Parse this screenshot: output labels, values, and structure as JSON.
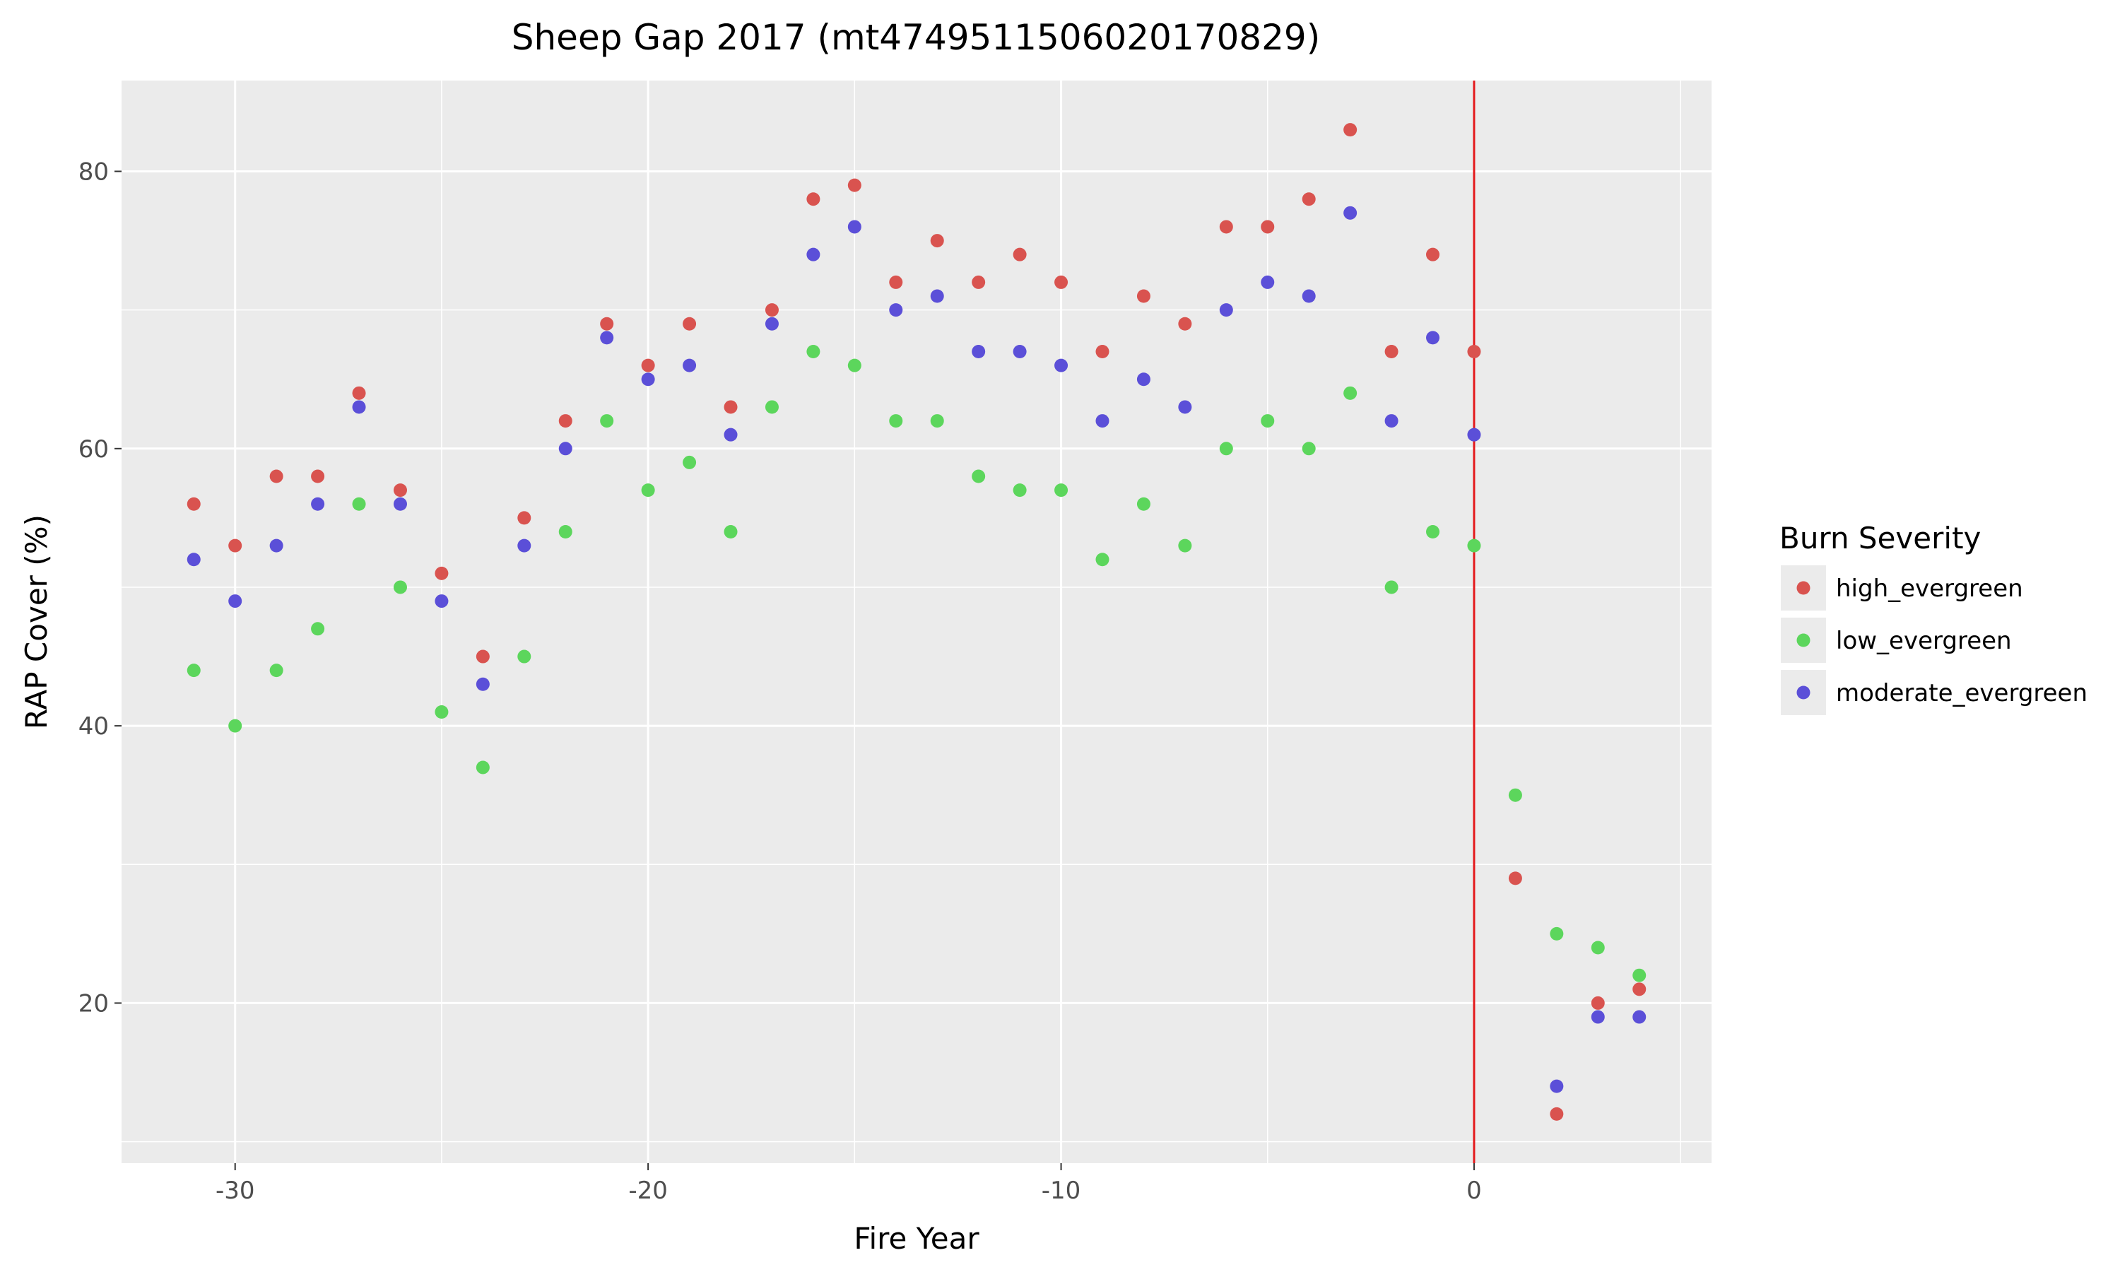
{
  "chart_data": {
    "type": "scatter",
    "title": "Sheep Gap 2017 (mt4749511506020170829)",
    "xlabel": "Fire Year",
    "ylabel": "RAP Cover (%)",
    "xlim": [
      -32.75,
      5.75
    ],
    "ylim": [
      8.45,
      86.55
    ],
    "x_ticks": [
      -30,
      -20,
      -10,
      0
    ],
    "x_tick_labels": [
      "-30",
      "-20",
      "-10",
      "0"
    ],
    "y_ticks": [
      20,
      40,
      60,
      80
    ],
    "y_tick_labels": [
      "20",
      "40",
      "60",
      "80"
    ],
    "grid": true,
    "legend": {
      "title": "Burn Severity",
      "position": "right"
    },
    "reference_line": {
      "x": 0,
      "color": "#e41a1c"
    },
    "series": [
      {
        "name": "high_evergreen",
        "color": "#d9534f",
        "points": [
          [
            -31,
            56
          ],
          [
            -30,
            53
          ],
          [
            -29,
            58
          ],
          [
            -28,
            58
          ],
          [
            -27,
            64
          ],
          [
            -26,
            57
          ],
          [
            -25,
            51
          ],
          [
            -24,
            45
          ],
          [
            -23,
            55
          ],
          [
            -22,
            62
          ],
          [
            -21,
            69
          ],
          [
            -20,
            66
          ],
          [
            -19,
            69
          ],
          [
            -18,
            63
          ],
          [
            -17,
            70
          ],
          [
            -16,
            78
          ],
          [
            -15,
            79
          ],
          [
            -14,
            72
          ],
          [
            -13,
            75
          ],
          [
            -12,
            72
          ],
          [
            -11,
            74
          ],
          [
            -10,
            72
          ],
          [
            -9,
            67
          ],
          [
            -8,
            71
          ],
          [
            -7,
            69
          ],
          [
            -6,
            76
          ],
          [
            -5,
            76
          ],
          [
            -4,
            78
          ],
          [
            -3,
            83
          ],
          [
            -2,
            67
          ],
          [
            -1,
            74
          ],
          [
            0,
            67
          ],
          [
            1,
            29
          ],
          [
            2,
            12
          ],
          [
            3,
            20
          ],
          [
            4,
            21
          ]
        ]
      },
      {
        "name": "low_evergreen",
        "color": "#5cd65c",
        "points": [
          [
            -31,
            44
          ],
          [
            -30,
            40
          ],
          [
            -29,
            44
          ],
          [
            -28,
            47
          ],
          [
            -27,
            56
          ],
          [
            -26,
            50
          ],
          [
            -25,
            41
          ],
          [
            -24,
            37
          ],
          [
            -23,
            45
          ],
          [
            -22,
            54
          ],
          [
            -21,
            62
          ],
          [
            -20,
            57
          ],
          [
            -19,
            59
          ],
          [
            -18,
            54
          ],
          [
            -17,
            63
          ],
          [
            -16,
            67
          ],
          [
            -15,
            66
          ],
          [
            -14,
            62
          ],
          [
            -13,
            62
          ],
          [
            -12,
            58
          ],
          [
            -11,
            57
          ],
          [
            -10,
            57
          ],
          [
            -9,
            52
          ],
          [
            -8,
            56
          ],
          [
            -7,
            53
          ],
          [
            -6,
            60
          ],
          [
            -5,
            62
          ],
          [
            -4,
            60
          ],
          [
            -3,
            64
          ],
          [
            -2,
            50
          ],
          [
            -1,
            54
          ],
          [
            0,
            53
          ],
          [
            1,
            35
          ],
          [
            2,
            25
          ],
          [
            3,
            24
          ],
          [
            4,
            22
          ]
        ]
      },
      {
        "name": "moderate_evergreen",
        "color": "#5b4fd8",
        "points": [
          [
            -31,
            52
          ],
          [
            -30,
            49
          ],
          [
            -29,
            53
          ],
          [
            -28,
            56
          ],
          [
            -27,
            63
          ],
          [
            -26,
            56
          ],
          [
            -25,
            49
          ],
          [
            -24,
            43
          ],
          [
            -23,
            53
          ],
          [
            -22,
            60
          ],
          [
            -21,
            68
          ],
          [
            -20,
            65
          ],
          [
            -19,
            66
          ],
          [
            -18,
            61
          ],
          [
            -17,
            69
          ],
          [
            -16,
            74
          ],
          [
            -15,
            76
          ],
          [
            -14,
            70
          ],
          [
            -13,
            71
          ],
          [
            -12,
            67
          ],
          [
            -11,
            67
          ],
          [
            -10,
            66
          ],
          [
            -9,
            62
          ],
          [
            -8,
            65
          ],
          [
            -7,
            63
          ],
          [
            -6,
            70
          ],
          [
            -5,
            72
          ],
          [
            -4,
            71
          ],
          [
            -3,
            77
          ],
          [
            -2,
            62
          ],
          [
            -1,
            68
          ],
          [
            0,
            61
          ],
          [
            2,
            14
          ],
          [
            3,
            19
          ],
          [
            4,
            19
          ]
        ]
      }
    ]
  }
}
